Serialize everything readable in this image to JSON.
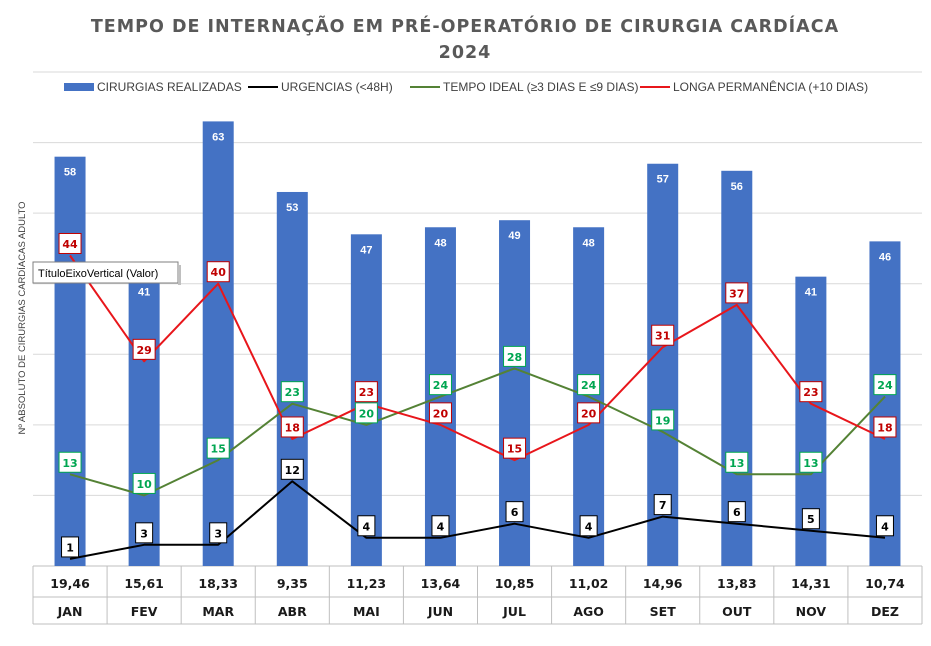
{
  "chart_data": {
    "type": "bar",
    "title": "TEMPO DE INTERNAÇÃO EM PRÉ-OPERATÓRIO DE CIRURGIA CARDÍACA",
    "subtitle": "2024",
    "ylabel": "Nº ABSOLUTO DE CIRURGIAS CARDÍACAS ADULTO",
    "ylim": [
      0,
      70
    ],
    "grid": true,
    "legend_position": "top",
    "categories": [
      "JAN",
      "FEV",
      "MAR",
      "ABR",
      "MAI",
      "JUN",
      "JUL",
      "AGO",
      "SET",
      "OUT",
      "NOV",
      "DEZ"
    ],
    "table_row": [
      "19,46",
      "15,61",
      "18,33",
      "9,35",
      "11,23",
      "13,64",
      "10,85",
      "11,02",
      "14,96",
      "13,83",
      "14,31",
      "10,74"
    ],
    "series": [
      {
        "name": "CIRURGIAS REALIZADAS",
        "kind": "bar",
        "color": "#4472C4",
        "values": [
          58,
          41,
          63,
          53,
          47,
          48,
          49,
          48,
          57,
          56,
          41,
          46
        ]
      },
      {
        "name": "URGENCIAS (<48H)",
        "kind": "line",
        "color": "#000000",
        "values": [
          1,
          3,
          3,
          12,
          4,
          4,
          6,
          4,
          7,
          6,
          5,
          4
        ]
      },
      {
        "name": "TEMPO IDEAL (≥3 DIAS E ≤9 DIAS)",
        "kind": "line",
        "color": "#548235",
        "label_color": "#00A651",
        "values": [
          13,
          10,
          15,
          23,
          20,
          24,
          28,
          24,
          19,
          13,
          13,
          24
        ]
      },
      {
        "name": "LONGA PERMANÊNCIA (+10 DIAS)",
        "kind": "line",
        "color": "#E8161B",
        "label_color": "#C00000",
        "values": [
          44,
          29,
          40,
          18,
          23,
          20,
          15,
          20,
          31,
          37,
          23,
          18
        ]
      }
    ]
  },
  "tooltip": {
    "text": "TítuloEixoVertical (Valor)"
  }
}
